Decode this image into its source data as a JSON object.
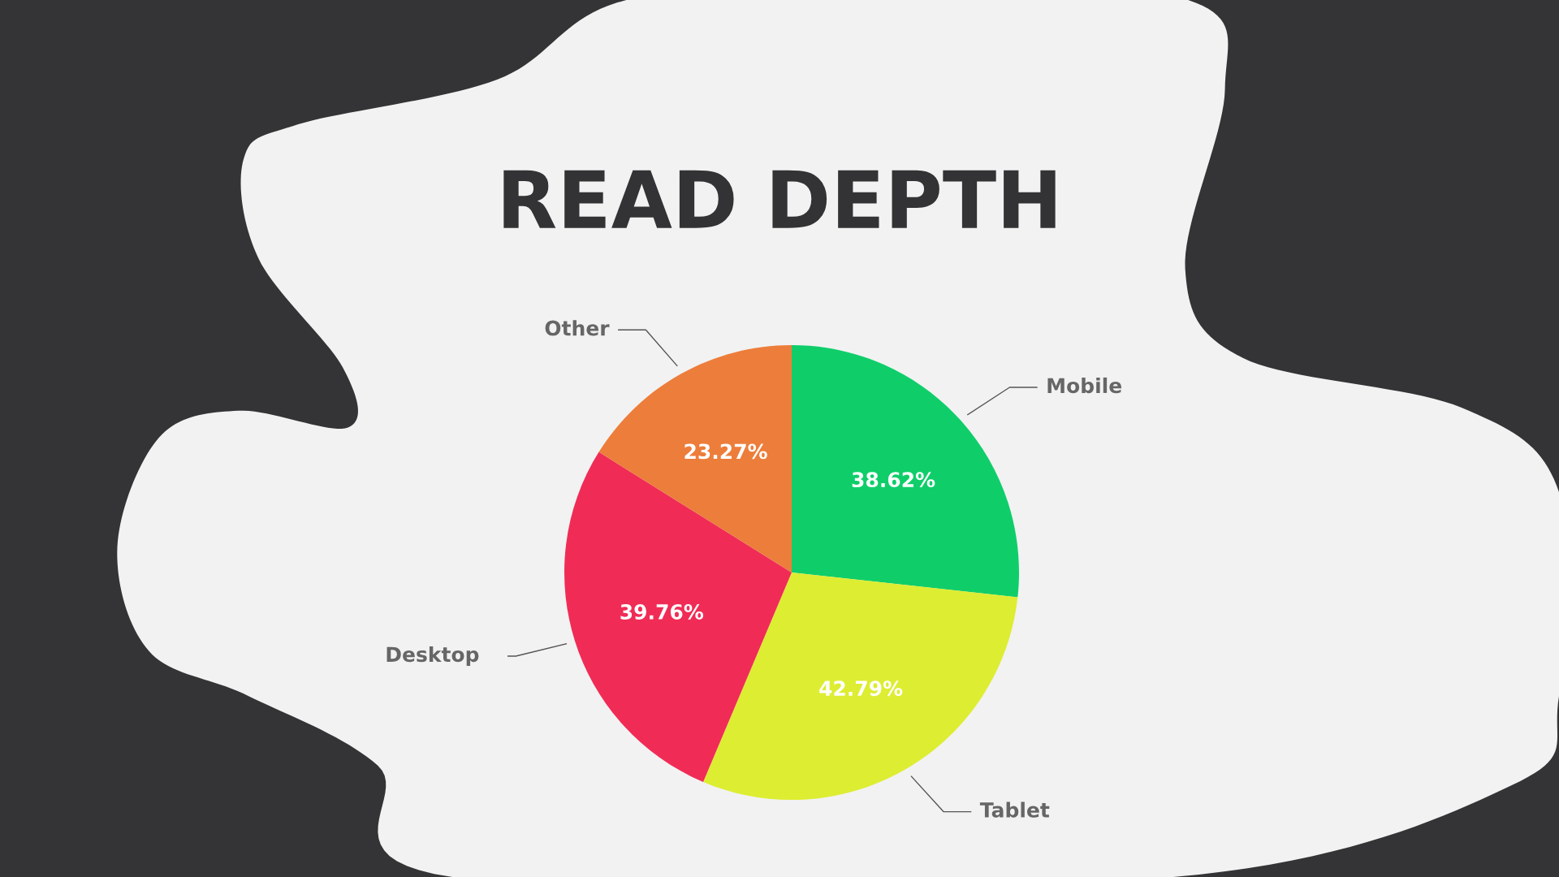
{
  "chart_data": {
    "type": "pie",
    "title": "READ DEPTH",
    "categories": [
      "Mobile",
      "Tablet",
      "Desktop",
      "Other"
    ],
    "values": [
      38.62,
      42.79,
      39.76,
      23.27
    ],
    "colors": [
      "#0fce6a",
      "#dded32",
      "#f02c56",
      "#ed7d3a"
    ],
    "value_labels": [
      "38.62%",
      "42.79%",
      "39.76%",
      "23.27%"
    ]
  }
}
